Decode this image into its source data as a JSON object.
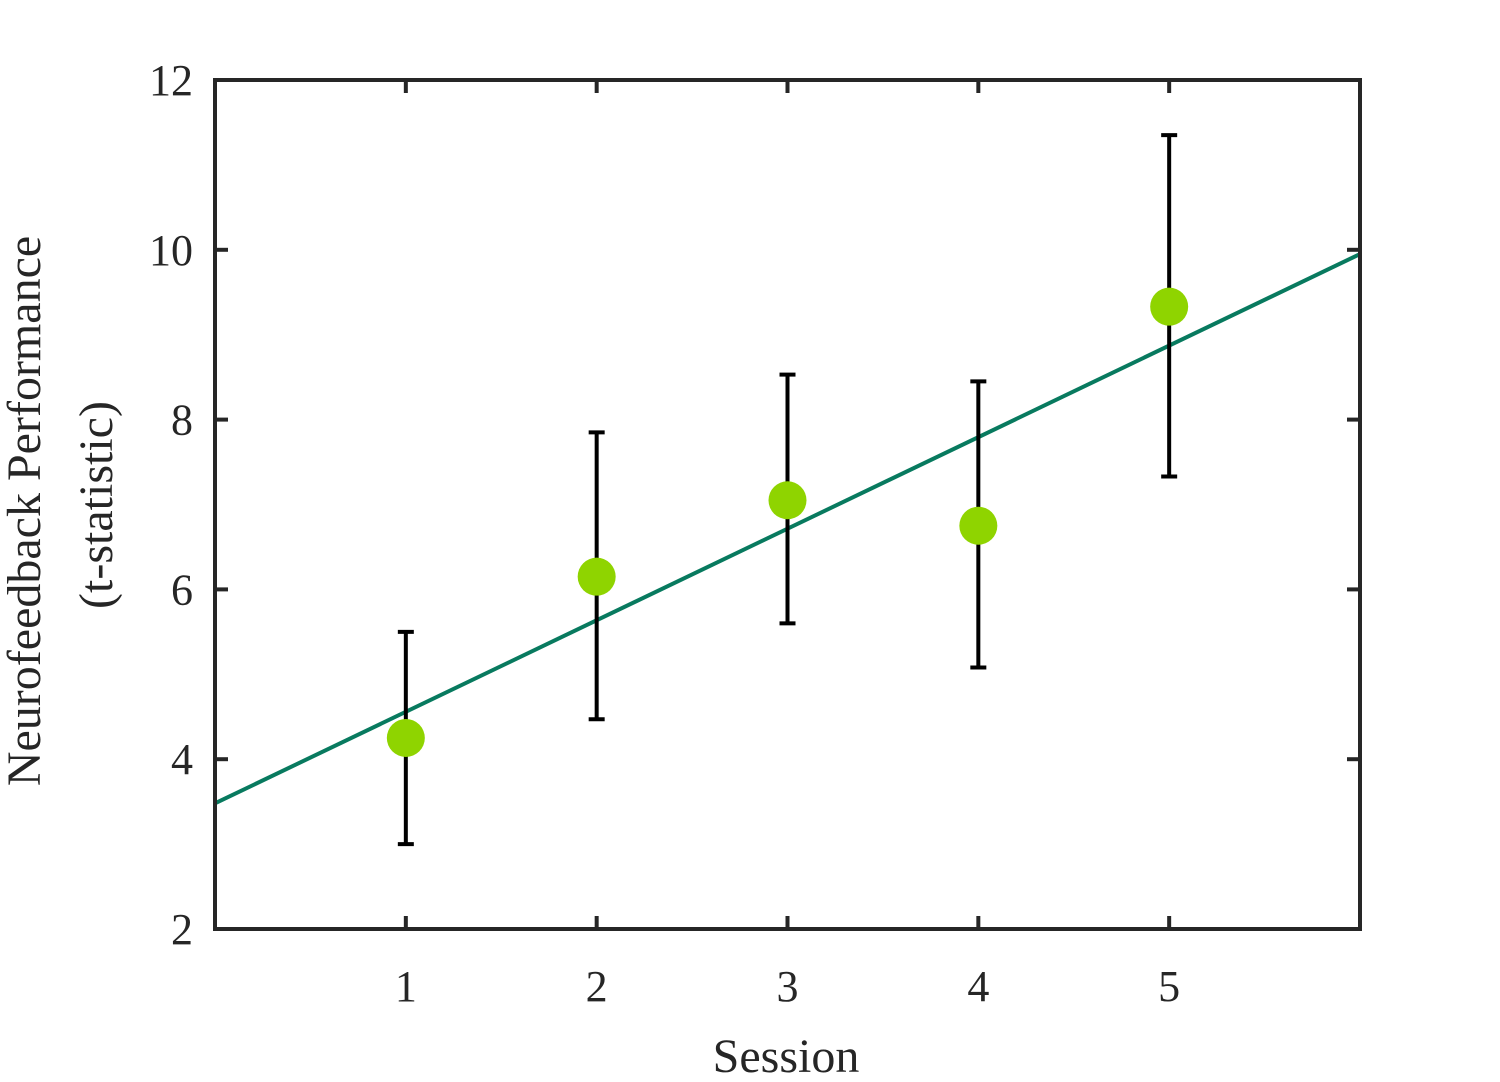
{
  "chart_data": {
    "type": "scatter",
    "title": "",
    "xlabel": "Session",
    "ylabel_lines": [
      "Neurofeedback Performance",
      "(t-statistic)"
    ],
    "xlim": [
      0,
      6
    ],
    "ylim": [
      2,
      12
    ],
    "x_ticks": [
      1,
      2,
      3,
      4,
      5
    ],
    "y_ticks": [
      2,
      4,
      6,
      8,
      10,
      12
    ],
    "grid": false,
    "points": {
      "x": [
        1,
        2,
        3,
        4,
        5
      ],
      "y": [
        4.25,
        6.15,
        7.05,
        6.75,
        9.33
      ],
      "error_low": [
        3.0,
        4.47,
        5.6,
        5.08,
        7.33
      ],
      "error_high": [
        5.5,
        7.85,
        8.53,
        8.45,
        11.35
      ],
      "color": "#8fd400"
    },
    "fit_line": {
      "x": [
        0,
        6
      ],
      "y": [
        3.48,
        9.95
      ],
      "color": "#087a5f"
    },
    "errorbar_color": "#000000",
    "axis_color": "#262626"
  }
}
